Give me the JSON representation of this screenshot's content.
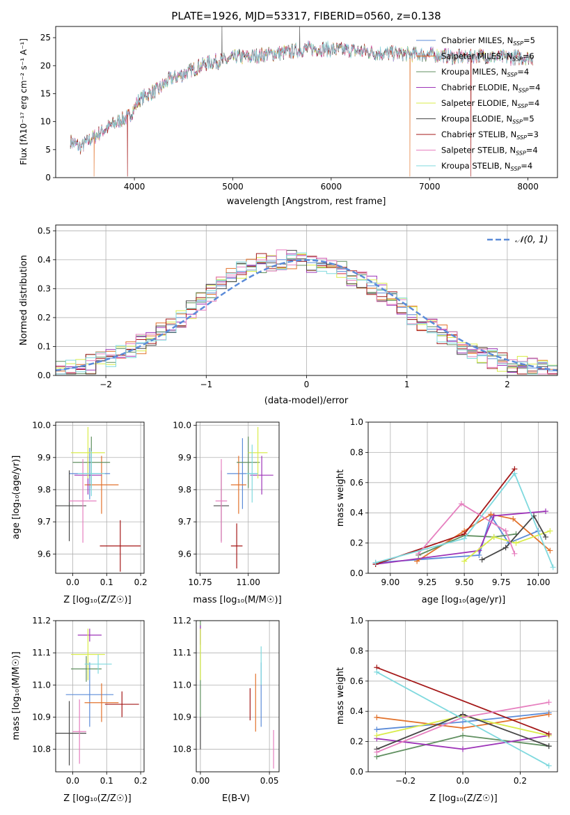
{
  "title": "PLATE=1926, MJD=53317, FIBERID=0560, z=0.138",
  "colors": {
    "blue": "#5b8bd8",
    "orange": "#e2722b",
    "green": "#5f8f5f",
    "purple": "#9d33b8",
    "yellow": "#d9ec4a",
    "dark": "#474747",
    "red": "#a41818",
    "pink": "#e67fbf",
    "cyan": "#7fd9de",
    "gauss": "#5b8bd8",
    "grid": "#b0b0b0"
  },
  "spectrum": {
    "xlabel": "wavelength [Angstrom, rest frame]",
    "ylabel": "Flux [fλ10⁻¹⁷ erg cm⁻² s⁻¹ A⁻¹]",
    "xticks": [
      "4000",
      "5000",
      "6000",
      "7000",
      "8000"
    ],
    "yticks": [
      "0",
      "5",
      "10",
      "15",
      "20",
      "25"
    ],
    "legend": [
      "Chabrier MILES, N_SSP=5",
      "Salpeter MILES, N_SSP=6",
      "Kroupa MILES, N_SSP=4",
      "Chabrier ELODIE, N_SSP=4",
      "Salpeter ELODIE, N_SSP=4",
      "Kroupa ELODIE, N_SSP=5",
      "Chabrier STELIB, N_SSP=3",
      "Salpeter STELIB, N_SSP=4",
      "Kroupa STELIB, N_SSP=4"
    ]
  },
  "residuals": {
    "xlabel": "(data-model)/error",
    "ylabel": "Normed distribution",
    "legend": "𝒩(0, 1)",
    "xticks": [
      "−2",
      "−1",
      "0",
      "1",
      "2"
    ],
    "yticks": [
      "0.0",
      "0.1",
      "0.2",
      "0.3",
      "0.4",
      "0.5"
    ]
  },
  "panels": {
    "age_z": {
      "xlabel": "Z [log₁₀(Z/Z☉)]",
      "ylabel": "age  [log₁₀(age/yr)]",
      "xticks": [
        "0.0",
        "0.1",
        "0.2"
      ],
      "yticks": [
        "9.6",
        "9.7",
        "9.8",
        "9.9",
        "10.0"
      ]
    },
    "age_mass": {
      "xlabel": "mass [log₁₀(M/M☉)]",
      "xticks": [
        "10.75",
        "11.00"
      ],
      "yticks": [
        "9.6",
        "9.7",
        "9.8",
        "9.9",
        "10.0"
      ]
    },
    "mw_age": {
      "xlabel": "age  [log₁₀(age/yr)]",
      "ylabel": "mass weight",
      "xticks": [
        "9.00",
        "9.25",
        "9.50",
        "9.75",
        "10.00"
      ],
      "yticks": [
        "0.0",
        "0.2",
        "0.4",
        "0.6",
        "0.8",
        "1.0"
      ]
    },
    "mass_z": {
      "xlabel": "Z [log₁₀(Z/Z☉)]",
      "ylabel": "mass [log₁₀(M/M☉)]",
      "xticks": [
        "0.0",
        "0.1",
        "0.2"
      ],
      "yticks": [
        "10.8",
        "10.9",
        "11.0",
        "11.1",
        "11.2"
      ]
    },
    "mass_ebv": {
      "xlabel": "E(B-V)",
      "xticks": [
        "0.00",
        "0.05"
      ],
      "yticks": [
        "10.8",
        "10.9",
        "11.0",
        "11.1",
        "11.2"
      ]
    },
    "mw_z": {
      "xlabel": "Z [log₁₀(Z/Z☉)]",
      "ylabel": "mass weight",
      "xticks": [
        "−0.2",
        "0.0",
        "0.2"
      ],
      "yticks": [
        "0.0",
        "0.2",
        "0.4",
        "0.6",
        "0.8",
        "1.0"
      ]
    }
  },
  "chart_data": [
    {
      "type": "line",
      "title": "PLATE=1926, MJD=53317, FIBERID=0560, z=0.138",
      "xlabel": "wavelength [Angstrom, rest frame]",
      "ylabel": "Flux",
      "xlim": [
        3200,
        8300
      ],
      "ylim": [
        0,
        27
      ],
      "legend_position": "top-right",
      "series": [
        {
          "name": "Chabrier MILES, N_SSP=5"
        },
        {
          "name": "Salpeter MILES, N_SSP=6"
        },
        {
          "name": "Kroupa MILES, N_SSP=4"
        },
        {
          "name": "Chabrier ELODIE, N_SSP=4"
        },
        {
          "name": "Salpeter ELODIE, N_SSP=4"
        },
        {
          "name": "Kroupa ELODIE, N_SSP=5"
        },
        {
          "name": "Chabrier STELIB, N_SSP=3"
        },
        {
          "name": "Salpeter STELIB, N_SSP=4"
        },
        {
          "name": "Kroupa STELIB, N_SSP=4"
        }
      ],
      "continuum": {
        "x": [
          3350,
          3450,
          3550,
          3650,
          3750,
          3850,
          3950,
          4050,
          4150,
          4250,
          4350,
          4450,
          4550,
          4650,
          4750,
          4850,
          4950,
          5050,
          5150,
          5250,
          5350,
          5450,
          5550,
          5650,
          5750,
          5850,
          5950,
          6050,
          6150,
          6250,
          6350,
          6450,
          6550,
          6650,
          6750,
          6850,
          6950,
          7050,
          7150,
          7250,
          7350,
          7450,
          7550,
          7650,
          7750,
          7850,
          7950,
          8050
        ],
        "y": [
          6.5,
          5.5,
          6.8,
          8.0,
          9.2,
          10.2,
          11.0,
          14.0,
          15.0,
          15.8,
          17.5,
          18.2,
          18.8,
          19.8,
          20.5,
          20.8,
          21.0,
          21.6,
          21.5,
          21.8,
          22.0,
          22.2,
          22.4,
          22.7,
          23.0,
          23.0,
          23.0,
          22.8,
          22.8,
          22.6,
          22.5,
          22.3,
          22.2,
          22.2,
          22.0,
          22.0,
          22.0,
          21.9,
          21.8,
          21.6,
          21.6,
          21.8,
          21.7,
          21.6,
          21.5,
          21.5,
          21.5,
          21.5
        ]
      },
      "dips": [
        {
          "x": 3590,
          "y": 0.2
        },
        {
          "x": 3930,
          "y": 0.2
        },
        {
          "x": 6800,
          "y": 0.2
        },
        {
          "x": 7420,
          "y": 0.2
        }
      ],
      "spikes": [
        {
          "x": 4890,
          "y": 27
        },
        {
          "x": 5680,
          "y": 27
        }
      ]
    },
    {
      "type": "bar",
      "xlabel": "(data-model)/error",
      "ylabel": "Normed distribution",
      "xlim": [
        -2.5,
        2.5
      ],
      "ylim": [
        0,
        0.52
      ],
      "grid": true,
      "legend_position": "top-right",
      "bin_width": 0.1,
      "bin_centers": [
        -2.45,
        -2.35,
        -2.25,
        -2.15,
        -2.05,
        -1.95,
        -1.85,
        -1.75,
        -1.65,
        -1.55,
        -1.45,
        -1.35,
        -1.25,
        -1.15,
        -1.05,
        -0.95,
        -0.85,
        -0.75,
        -0.65,
        -0.55,
        -0.45,
        -0.35,
        -0.25,
        -0.15,
        -0.05,
        0.05,
        0.15,
        0.25,
        0.35,
        0.45,
        0.55,
        0.65,
        0.75,
        0.85,
        0.95,
        1.05,
        1.15,
        1.25,
        1.35,
        1.45,
        1.55,
        1.65,
        1.75,
        1.85,
        1.95,
        2.05,
        2.15,
        2.25,
        2.35,
        2.45
      ],
      "series": [
        {
          "name": "Chabrier MILES, N_SSP=5",
          "values": [
            0.02,
            0.025,
            0.03,
            0.04,
            0.05,
            0.06,
            0.07,
            0.09,
            0.11,
            0.125,
            0.15,
            0.175,
            0.2,
            0.23,
            0.26,
            0.285,
            0.31,
            0.335,
            0.36,
            0.38,
            0.39,
            0.395,
            0.4,
            0.4,
            0.395,
            0.39,
            0.385,
            0.375,
            0.36,
            0.345,
            0.33,
            0.31,
            0.285,
            0.26,
            0.235,
            0.21,
            0.185,
            0.16,
            0.14,
            0.12,
            0.1,
            0.085,
            0.07,
            0.058,
            0.048,
            0.04,
            0.032,
            0.026,
            0.02,
            0.016
          ]
        },
        {
          "name": "N(0,1)",
          "type": "line",
          "mu": 0,
          "sigma": 1
        }
      ]
    },
    {
      "type": "scatter",
      "xlabel": "Z [log10(Z/Zsun)]",
      "ylabel": "age [log10(age/yr)]",
      "xlim": [
        -0.05,
        0.21
      ],
      "ylim": [
        9.54,
        10.01
      ],
      "points": [
        {
          "x": 0.05,
          "y": 9.85,
          "xerr": 0.06,
          "yerr": 0.08
        },
        {
          "x": 0.085,
          "y": 9.815,
          "xerr": 0.05,
          "yerr": 0.09
        },
        {
          "x": 0.055,
          "y": 9.885,
          "xerr": 0.055,
          "yerr": 0.08
        },
        {
          "x": 0.045,
          "y": 9.845,
          "xerr": 0.04,
          "yerr": 0.06
        },
        {
          "x": 0.045,
          "y": 9.915,
          "xerr": 0.05,
          "yerr": 0.08
        },
        {
          "x": -0.01,
          "y": 9.75,
          "xerr": 0.05,
          "yerr": 0.11
        },
        {
          "x": 0.14,
          "y": 9.625,
          "xerr": 0.06,
          "yerr": 0.08
        },
        {
          "x": 0.03,
          "y": 9.765,
          "xerr": 0.04,
          "yerr": 0.13
        },
        {
          "x": 0.055,
          "y": 9.85,
          "xerr": 0.04,
          "yerr": 0.07
        }
      ]
    },
    {
      "type": "scatter",
      "xlabel": "mass [log10(M/Msun)]",
      "xlim": [
        10.73,
        11.16
      ],
      "ylim": [
        9.54,
        10.01
      ],
      "points": [
        {
          "x": 10.97,
          "y": 9.85,
          "xerr": 0.08,
          "yerr": 0.11
        },
        {
          "x": 10.95,
          "y": 9.815,
          "xerr": 0.04,
          "yerr": 0.09
        },
        {
          "x": 11.0,
          "y": 9.885,
          "xerr": 0.06,
          "yerr": 0.08
        },
        {
          "x": 11.07,
          "y": 9.845,
          "xerr": 0.06,
          "yerr": 0.06
        },
        {
          "x": 11.05,
          "y": 9.915,
          "xerr": 0.05,
          "yerr": 0.08
        },
        {
          "x": 10.86,
          "y": 9.75,
          "xerr": 0.04,
          "yerr": 0.11
        },
        {
          "x": 10.94,
          "y": 9.625,
          "xerr": 0.03,
          "yerr": 0.07
        },
        {
          "x": 10.86,
          "y": 9.765,
          "xerr": 0.03,
          "yerr": 0.13
        },
        {
          "x": 11.02,
          "y": 9.85,
          "xerr": 0.03,
          "yerr": 0.09
        }
      ]
    },
    {
      "type": "line",
      "xlabel": "age [log10(age/yr)]",
      "ylabel": "mass weight",
      "xlim": [
        8.85,
        10.13
      ],
      "ylim": [
        0,
        1
      ],
      "grid": true,
      "series": [
        {
          "name": "Chabrier MILES, N_SSP=5",
          "x": [
            8.9,
            9.6,
            9.68,
            9.8,
            10.0
          ],
          "y": [
            0.07,
            0.12,
            0.38,
            0.2,
            0.28
          ]
        },
        {
          "name": "Salpeter MILES, N_SSP=6",
          "x": [
            9.18,
            9.5,
            9.68,
            9.83,
            10.08
          ],
          "y": [
            0.08,
            0.28,
            0.39,
            0.36,
            0.15
          ]
        },
        {
          "name": "Kroupa MILES, N_SSP=4",
          "x": [
            9.19,
            9.5,
            9.7,
            9.85
          ],
          "y": [
            0.12,
            0.25,
            0.24,
            0.26
          ]
        },
        {
          "name": "Chabrier ELODIE, N_SSP=4",
          "x": [
            8.9,
            9.6,
            9.7,
            10.05
          ],
          "y": [
            0.06,
            0.15,
            0.38,
            0.41
          ]
        },
        {
          "name": "Salpeter ELODIE, N_SSP=4",
          "x": [
            9.5,
            9.7,
            9.85,
            10.08
          ],
          "y": [
            0.08,
            0.24,
            0.2,
            0.28
          ]
        },
        {
          "name": "Kroupa ELODIE, N_SSP=5",
          "x": [
            9.62,
            9.78,
            9.97,
            10.05
          ],
          "y": [
            0.09,
            0.17,
            0.38,
            0.24
          ]
        },
        {
          "name": "Chabrier STELIB, N_SSP=3",
          "x": [
            8.9,
            9.5,
            9.84
          ],
          "y": [
            0.06,
            0.26,
            0.69
          ]
        },
        {
          "name": "Salpeter STELIB, N_SSP=4",
          "x": [
            9.19,
            9.48,
            9.78,
            9.84
          ],
          "y": [
            0.13,
            0.46,
            0.28,
            0.13
          ]
        },
        {
          "name": "Kroupa STELIB, N_SSP=4",
          "x": [
            8.9,
            9.5,
            9.84,
            10.1
          ],
          "y": [
            0.07,
            0.23,
            0.66,
            0.04
          ]
        }
      ]
    },
    {
      "type": "scatter",
      "xlabel": "Z [log10(Z/Zsun)]",
      "ylabel": "mass [log10(M/Msun)]",
      "xlim": [
        -0.05,
        0.21
      ],
      "ylim": [
        10.73,
        11.2
      ],
      "points": [
        {
          "x": 0.05,
          "y": 10.97,
          "xerr": 0.07,
          "yerr": 0.1
        },
        {
          "x": 0.085,
          "y": 10.945,
          "xerr": 0.05,
          "yerr": 0.06
        },
        {
          "x": 0.04,
          "y": 11.05,
          "xerr": 0.045,
          "yerr": 0.04
        },
        {
          "x": 0.05,
          "y": 11.155,
          "xerr": 0.035,
          "yerr": 0.02
        },
        {
          "x": 0.045,
          "y": 11.095,
          "xerr": 0.05,
          "yerr": 0.08
        },
        {
          "x": -0.01,
          "y": 10.85,
          "xerr": 0.05,
          "yerr": 0.1
        },
        {
          "x": 0.145,
          "y": 10.94,
          "xerr": 0.05,
          "yerr": 0.04
        },
        {
          "x": 0.02,
          "y": 10.855,
          "xerr": 0.02,
          "yerr": 0.1
        },
        {
          "x": 0.075,
          "y": 11.065,
          "xerr": 0.04,
          "yerr": 0.03
        }
      ]
    },
    {
      "type": "scatter",
      "xlabel": "E(B-V)",
      "xlim": [
        -0.003,
        0.057
      ],
      "ylim": [
        10.73,
        11.2
      ],
      "points": [
        {
          "x": 0.044,
          "y": 10.97,
          "yerr": 0.1
        },
        {
          "x": 0.04,
          "y": 10.945,
          "yerr": 0.09
        },
        {
          "x": 0.0,
          "y": 11.05,
          "yerr": 0.15
        },
        {
          "x": 0.0,
          "y": 11.155,
          "yerr": 0.03
        },
        {
          "x": 0.0,
          "y": 11.095,
          "yerr": 0.08
        },
        {
          "x": 0.0,
          "y": 10.85,
          "yerr": 0.05
        },
        {
          "x": 0.036,
          "y": 10.94,
          "yerr": 0.05
        },
        {
          "x": 0.053,
          "y": 10.8,
          "yerr": 0.06
        },
        {
          "x": 0.044,
          "y": 11.06,
          "yerr": 0.06
        }
      ]
    },
    {
      "type": "line",
      "xlabel": "Z [log10(Z/Zsun)]",
      "ylabel": "mass weight",
      "xlim": [
        -0.33,
        0.33
      ],
      "ylim": [
        0,
        1
      ],
      "grid": true,
      "series": [
        {
          "name": "Chabrier MILES, N_SSP=5",
          "x": [
            -0.3,
            0.0,
            0.3
          ],
          "y": [
            0.28,
            0.33,
            0.39
          ]
        },
        {
          "name": "Salpeter MILES, N_SSP=6",
          "x": [
            -0.3,
            0.0,
            0.3
          ],
          "y": [
            0.36,
            0.29,
            0.38
          ]
        },
        {
          "name": "Kroupa MILES, N_SSP=4",
          "x": [
            -0.3,
            0.0,
            0.3
          ],
          "y": [
            0.1,
            0.24,
            0.17
          ]
        },
        {
          "name": "Chabrier ELODIE, N_SSP=4",
          "x": [
            -0.3,
            0.0,
            0.3
          ],
          "y": [
            0.22,
            0.15,
            0.24
          ]
        },
        {
          "name": "Salpeter ELODIE, N_SSP=4",
          "x": [
            -0.3,
            0.0,
            0.3
          ],
          "y": [
            0.24,
            0.37,
            0.24
          ]
        },
        {
          "name": "Kroupa ELODIE, N_SSP=5",
          "x": [
            -0.3,
            0.0,
            0.3
          ],
          "y": [
            0.15,
            0.38,
            0.17
          ]
        },
        {
          "name": "Chabrier STELIB, N_SSP=3",
          "x": [
            -0.3,
            0.3
          ],
          "y": [
            0.69,
            0.25
          ]
        },
        {
          "name": "Salpeter STELIB, N_SSP=4",
          "x": [
            -0.3,
            0.0,
            0.3
          ],
          "y": [
            0.13,
            0.36,
            0.46
          ]
        },
        {
          "name": "Kroupa STELIB, N_SSP=4",
          "x": [
            -0.3,
            0.3
          ],
          "y": [
            0.66,
            0.04
          ]
        }
      ]
    }
  ]
}
